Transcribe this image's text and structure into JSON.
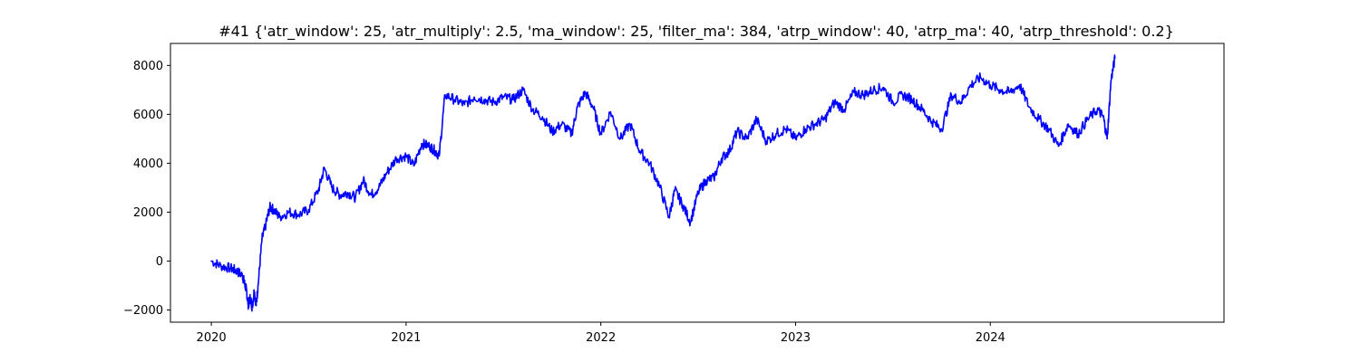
{
  "chart_data": {
    "type": "line",
    "title": "#41 {'atr_window': 25, 'atr_multiply': 2.5, 'ma_window': 25, 'filter_ma': 384, 'atrp_window': 40, 'atrp_ma': 40, 'atrp_threshold': 0.2}",
    "xlabel": "",
    "ylabel": "",
    "xlim": [
      2019.79,
      2025.2
    ],
    "ylim": [
      -2500,
      8900
    ],
    "xticks": [
      2020,
      2021,
      2022,
      2023,
      2024
    ],
    "xtick_labels": [
      "2020",
      "2021",
      "2022",
      "2023",
      "2024"
    ],
    "yticks": [
      -2000,
      0,
      2000,
      4000,
      6000,
      8000
    ],
    "ytick_labels": [
      "−2000",
      "0",
      "2000",
      "4000",
      "6000",
      "8000"
    ],
    "grid": false,
    "series": [
      {
        "color": "#0000ff",
        "x": [
          2020.0,
          2020.05,
          2020.1,
          2020.13,
          2020.16,
          2020.17,
          2020.18,
          2020.19,
          2020.2,
          2020.21,
          2020.22,
          2020.23,
          2020.24,
          2020.26,
          2020.28,
          2020.3,
          2020.32,
          2020.35,
          2020.4,
          2020.45,
          2020.5,
          2020.55,
          2020.58,
          2020.62,
          2020.66,
          2020.7,
          2020.74,
          2020.78,
          2020.82,
          2020.86,
          2020.9,
          2020.95,
          2021.0,
          2021.04,
          2021.08,
          2021.12,
          2021.15,
          2021.17,
          2021.2,
          2021.25,
          2021.3,
          2021.35,
          2021.4,
          2021.45,
          2021.5,
          2021.55,
          2021.6,
          2021.65,
          2021.7,
          2021.75,
          2021.8,
          2021.85,
          2021.88,
          2021.92,
          2021.96,
          2022.0,
          2022.05,
          2022.1,
          2022.15,
          2022.2,
          2022.25,
          2022.3,
          2022.35,
          2022.38,
          2022.42,
          2022.46,
          2022.5,
          2022.54,
          2022.58,
          2022.62,
          2022.66,
          2022.7,
          2022.75,
          2022.8,
          2022.85,
          2022.9,
          2022.95,
          2023.0,
          2023.05,
          2023.1,
          2023.15,
          2023.2,
          2023.25,
          2023.3,
          2023.35,
          2023.4,
          2023.45,
          2023.5,
          2023.55,
          2023.6,
          2023.65,
          2023.7,
          2023.75,
          2023.8,
          2023.85,
          2023.9,
          2023.95,
          2024.0,
          2024.05,
          2024.1,
          2024.15,
          2024.2,
          2024.25,
          2024.3,
          2024.35,
          2024.4,
          2024.45,
          2024.5,
          2024.55,
          2024.58,
          2024.6,
          2024.62,
          2024.64
        ],
        "y": [
          0,
          -200,
          -300,
          -400,
          -600,
          -900,
          -1200,
          -1800,
          -1500,
          -1900,
          -1200,
          -1800,
          -1000,
          900,
          1500,
          2200,
          2100,
          1800,
          2000,
          1900,
          2100,
          2900,
          3800,
          3000,
          2700,
          2800,
          2600,
          3300,
          2700,
          3000,
          3600,
          4200,
          4300,
          3900,
          4800,
          4700,
          4500,
          4300,
          6800,
          6600,
          6400,
          6700,
          6600,
          6500,
          6700,
          6600,
          7000,
          6200,
          5900,
          5300,
          5600,
          5200,
          6300,
          6900,
          6300,
          5200,
          6100,
          5000,
          5600,
          4500,
          4000,
          3100,
          1800,
          2900,
          2300,
          1600,
          2800,
          3300,
          3400,
          4200,
          4500,
          5300,
          5000,
          5800,
          4900,
          5200,
          5400,
          5000,
          5400,
          5600,
          5800,
          6500,
          6200,
          6900,
          6800,
          7000,
          7100,
          6500,
          6800,
          6600,
          6200,
          5700,
          5400,
          6800,
          6500,
          7200,
          7500,
          7200,
          7000,
          6900,
          7200,
          6300,
          5800,
          5400,
          4700,
          5600,
          5200,
          5800,
          6200,
          5900,
          5000,
          7400,
          8300
        ]
      }
    ]
  }
}
